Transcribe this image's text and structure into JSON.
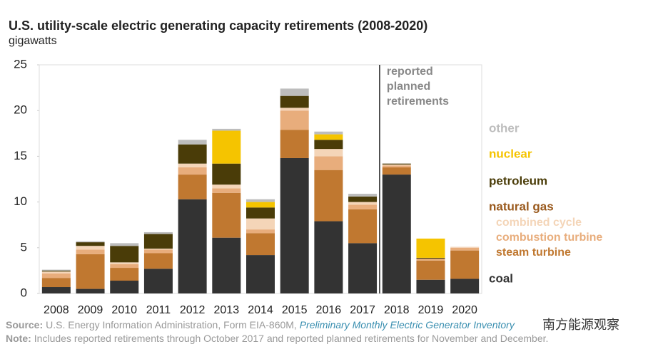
{
  "chart_data": {
    "type": "stacked_bar",
    "title": "U.S. utility-scale electric generating capacity retirements (2008-2020)",
    "y_label": "gigawatts",
    "categories": [
      "2008",
      "2009",
      "2010",
      "2011",
      "2012",
      "2013",
      "2014",
      "2015",
      "2016",
      "2017",
      "2018",
      "2019",
      "2020"
    ],
    "series": [
      {
        "name": "coal",
        "color": "#333333",
        "values": [
          0.7,
          0.5,
          1.4,
          2.7,
          10.3,
          6.1,
          4.2,
          14.8,
          7.9,
          5.5,
          13.0,
          1.5,
          1.6
        ]
      },
      {
        "name": "steam turbine",
        "color": "#c07830",
        "values": [
          1.0,
          3.8,
          1.4,
          1.7,
          2.7,
          4.9,
          2.4,
          3.1,
          5.6,
          3.7,
          0.8,
          2.1,
          3.1
        ]
      },
      {
        "name": "combustion turbine",
        "color": "#e8ad7c",
        "values": [
          0.5,
          0.5,
          0.4,
          0.4,
          0.8,
          0.5,
          0.4,
          2.1,
          1.5,
          0.5,
          0.2,
          0.2,
          0.3
        ]
      },
      {
        "name": "combined cycle",
        "color": "#f4d5b8",
        "values": [
          0.2,
          0.4,
          0.2,
          0.1,
          0.4,
          0.4,
          1.2,
          0.3,
          0.8,
          0.3,
          0.1,
          0,
          0.1
        ]
      },
      {
        "name": "petroleum",
        "color": "#4a3c08",
        "values": [
          0.1,
          0.4,
          1.8,
          1.6,
          2.1,
          2.3,
          1.2,
          1.3,
          1.0,
          0.6,
          0.1,
          0.1,
          0
        ]
      },
      {
        "name": "nuclear",
        "color": "#f5c400",
        "values": [
          0,
          0,
          0,
          0,
          0,
          3.6,
          0.6,
          0,
          0.6,
          0,
          0,
          2.1,
          0
        ]
      },
      {
        "name": "other",
        "color": "#bdbdbd",
        "values": [
          0.1,
          0.1,
          0.3,
          0.2,
          0.5,
          0.2,
          0.3,
          0.8,
          0.3,
          0.3,
          0,
          0,
          0
        ]
      }
    ],
    "legend_group": "natural gas",
    "legend_group_color": "#9a5a1e",
    "annotation_lines": [
      "reported",
      "planned",
      "retirements"
    ],
    "ylim": [
      0,
      25
    ],
    "yticks": [
      0,
      5,
      10,
      15,
      20,
      25
    ],
    "grid": false,
    "source_label": "Source:",
    "source_text": "U.S. Energy Information Administration, Form EIA-860M, ",
    "source_italic": "Preliminary Monthly Electric Generator Inventory",
    "note_label": "Note:",
    "note_text": "Includes reported retirements through October 2017 and reported planned retirements for November and December.",
    "watermark": "南方能源观察"
  }
}
